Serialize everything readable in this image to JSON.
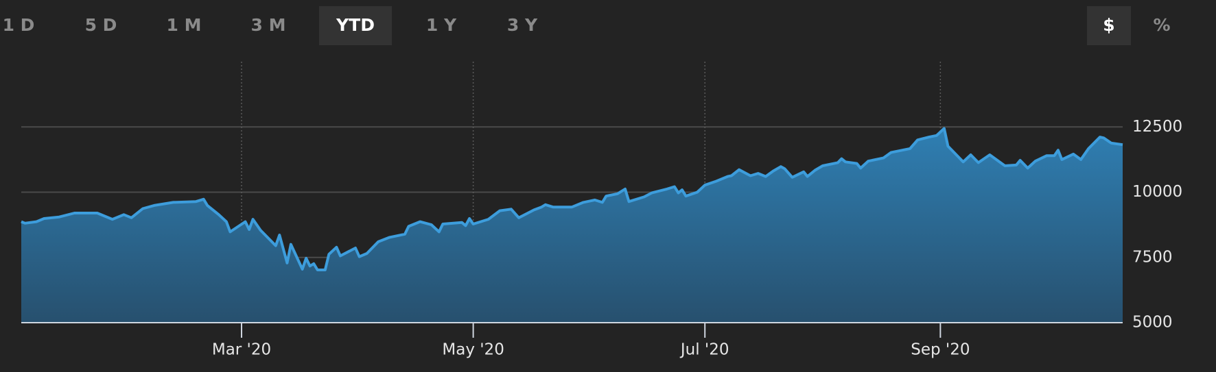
{
  "range_buttons": [
    "1 D",
    "5 D",
    "1 M",
    "3 M",
    "YTD",
    "1 Y",
    "3 Y"
  ],
  "active_range": 4,
  "unit_buttons": [
    "$",
    "%"
  ],
  "active_unit": 0,
  "chart_data": {
    "type": "area",
    "x": [
      2,
      3,
      6,
      8,
      12,
      16,
      22,
      26,
      29,
      31,
      34,
      37,
      42,
      48,
      50,
      51,
      54,
      56,
      57,
      61,
      62,
      63,
      65,
      69,
      70,
      72,
      73,
      76,
      77,
      78,
      79,
      80,
      82,
      83,
      85,
      86,
      90,
      91,
      93,
      96,
      99,
      103,
      104,
      107,
      110,
      112,
      113,
      118,
      119,
      120,
      121,
      125,
      128,
      131,
      133,
      137,
      139,
      140,
      142,
      147,
      150,
      153,
      155,
      156,
      159,
      161,
      162,
      166,
      168,
      172,
      174,
      175,
      176,
      177,
      180,
      182,
      185,
      188,
      189,
      191,
      194,
      196,
      198,
      200,
      202,
      203,
      205,
      208,
      209,
      211,
      213,
      217,
      218,
      219,
      222,
      223,
      225,
      229,
      231,
      233,
      236,
      238,
      241,
      243,
      245,
      246,
      250,
      252,
      254,
      257,
      261,
      264,
      265,
      267,
      269,
      272,
      274,
      275,
      276,
      279,
      281,
      283,
      286,
      287,
      289,
      292
    ],
    "series": [
      {
        "color": "#3d9ddc",
        "values": [
          8870,
          8810,
          8870,
          8990,
          9050,
          9200,
          9200,
          8960,
          9140,
          9020,
          9370,
          9490,
          9610,
          9640,
          9730,
          9490,
          9140,
          8870,
          8480,
          8870,
          8570,
          8960,
          8540,
          7950,
          8360,
          7290,
          8000,
          7050,
          7470,
          7170,
          7260,
          7020,
          7020,
          7620,
          7890,
          7560,
          7860,
          7530,
          7650,
          8100,
          8270,
          8390,
          8690,
          8870,
          8750,
          8480,
          8780,
          8840,
          8720,
          8990,
          8780,
          8960,
          9290,
          9350,
          9020,
          9320,
          9430,
          9520,
          9430,
          9430,
          9610,
          9700,
          9610,
          9850,
          9940,
          10120,
          9640,
          9820,
          9970,
          10120,
          10210,
          9970,
          10090,
          9850,
          10000,
          10270,
          10420,
          10600,
          10630,
          10860,
          10630,
          10720,
          10600,
          10810,
          10980,
          10900,
          10570,
          10780,
          10600,
          10840,
          11010,
          11130,
          11280,
          11160,
          11100,
          10920,
          11190,
          11310,
          11520,
          11580,
          11670,
          12000,
          12110,
          12170,
          12440,
          11760,
          11160,
          11430,
          11130,
          11430,
          11010,
          11040,
          11220,
          10920,
          11190,
          11400,
          11400,
          11610,
          11250,
          11460,
          11250,
          11670,
          12110,
          12080,
          11880,
          11820
        ]
      }
    ],
    "xlim": [
      2,
      292
    ],
    "xticks": [
      {
        "value": 60,
        "label": "Mar '20"
      },
      {
        "value": 121,
        "label": "May '20"
      },
      {
        "value": 182,
        "label": "Jul '20"
      },
      {
        "value": 244,
        "label": "Sep '20"
      }
    ],
    "ylim": [
      5000,
      15000
    ],
    "yticks": [
      5000,
      7500,
      10000,
      12500
    ],
    "grid": true
  }
}
